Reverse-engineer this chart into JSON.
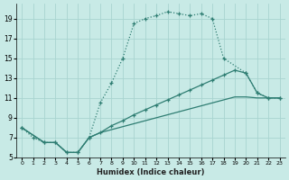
{
  "xlabel": "Humidex (Indice chaleur)",
  "bg_color": "#c8eae6",
  "grid_color": "#a8d4d0",
  "line_color": "#2e7d72",
  "xlim": [
    -0.5,
    23.5
  ],
  "ylim": [
    5,
    20.5
  ],
  "yticks": [
    5,
    7,
    9,
    11,
    13,
    15,
    17,
    19
  ],
  "xticks": [
    0,
    1,
    2,
    3,
    4,
    5,
    6,
    7,
    8,
    9,
    10,
    11,
    12,
    13,
    14,
    15,
    16,
    17,
    18,
    19,
    20,
    21,
    22,
    23
  ],
  "curve1_x": [
    0,
    1,
    2,
    3,
    4,
    5,
    6,
    7,
    8,
    9,
    10,
    11,
    12,
    13,
    14,
    15,
    16,
    17,
    18,
    20,
    21,
    22,
    23
  ],
  "curve1_y": [
    8,
    7,
    6.5,
    6.5,
    5.5,
    5.5,
    7.0,
    10.5,
    12.5,
    15.0,
    18.5,
    19.0,
    19.3,
    19.7,
    19.5,
    19.3,
    19.5,
    19.0,
    15.0,
    13.5,
    11.5,
    11.0,
    11.0
  ],
  "curve2_x": [
    0,
    2,
    3,
    4,
    5,
    6,
    7,
    8,
    9,
    10,
    11,
    12,
    13,
    14,
    15,
    16,
    17,
    18,
    19,
    20,
    21,
    22,
    23
  ],
  "curve2_y": [
    8,
    6.5,
    6.5,
    5.5,
    5.5,
    7.0,
    7.5,
    8.2,
    8.7,
    9.3,
    9.8,
    10.3,
    10.8,
    11.3,
    11.8,
    12.3,
    12.8,
    13.3,
    13.8,
    13.5,
    11.5,
    11.0,
    11.0
  ],
  "curve3_x": [
    0,
    2,
    3,
    4,
    5,
    6,
    7,
    8,
    9,
    10,
    11,
    12,
    13,
    14,
    15,
    16,
    17,
    18,
    19,
    20,
    21,
    22,
    23
  ],
  "curve3_y": [
    8,
    6.5,
    6.5,
    5.5,
    5.5,
    7.0,
    7.5,
    7.8,
    8.1,
    8.4,
    8.7,
    9.0,
    9.3,
    9.6,
    9.9,
    10.2,
    10.5,
    10.8,
    11.1,
    11.1,
    11.0,
    11.0,
    11.0
  ]
}
